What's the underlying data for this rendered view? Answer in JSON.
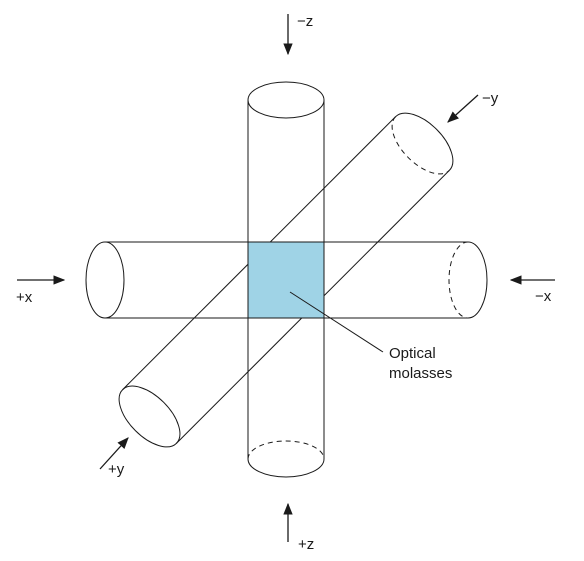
{
  "figure": {
    "molasses_color": "#9fd3e6",
    "line_color": "#1a1a1a",
    "beams": {
      "minus_z": "−z",
      "plus_z": "+z",
      "minus_x": "−x",
      "plus_x": "+x",
      "minus_y": "−y",
      "plus_y": "+y"
    },
    "callout": {
      "line1": "Optical",
      "line2": "molasses"
    }
  }
}
